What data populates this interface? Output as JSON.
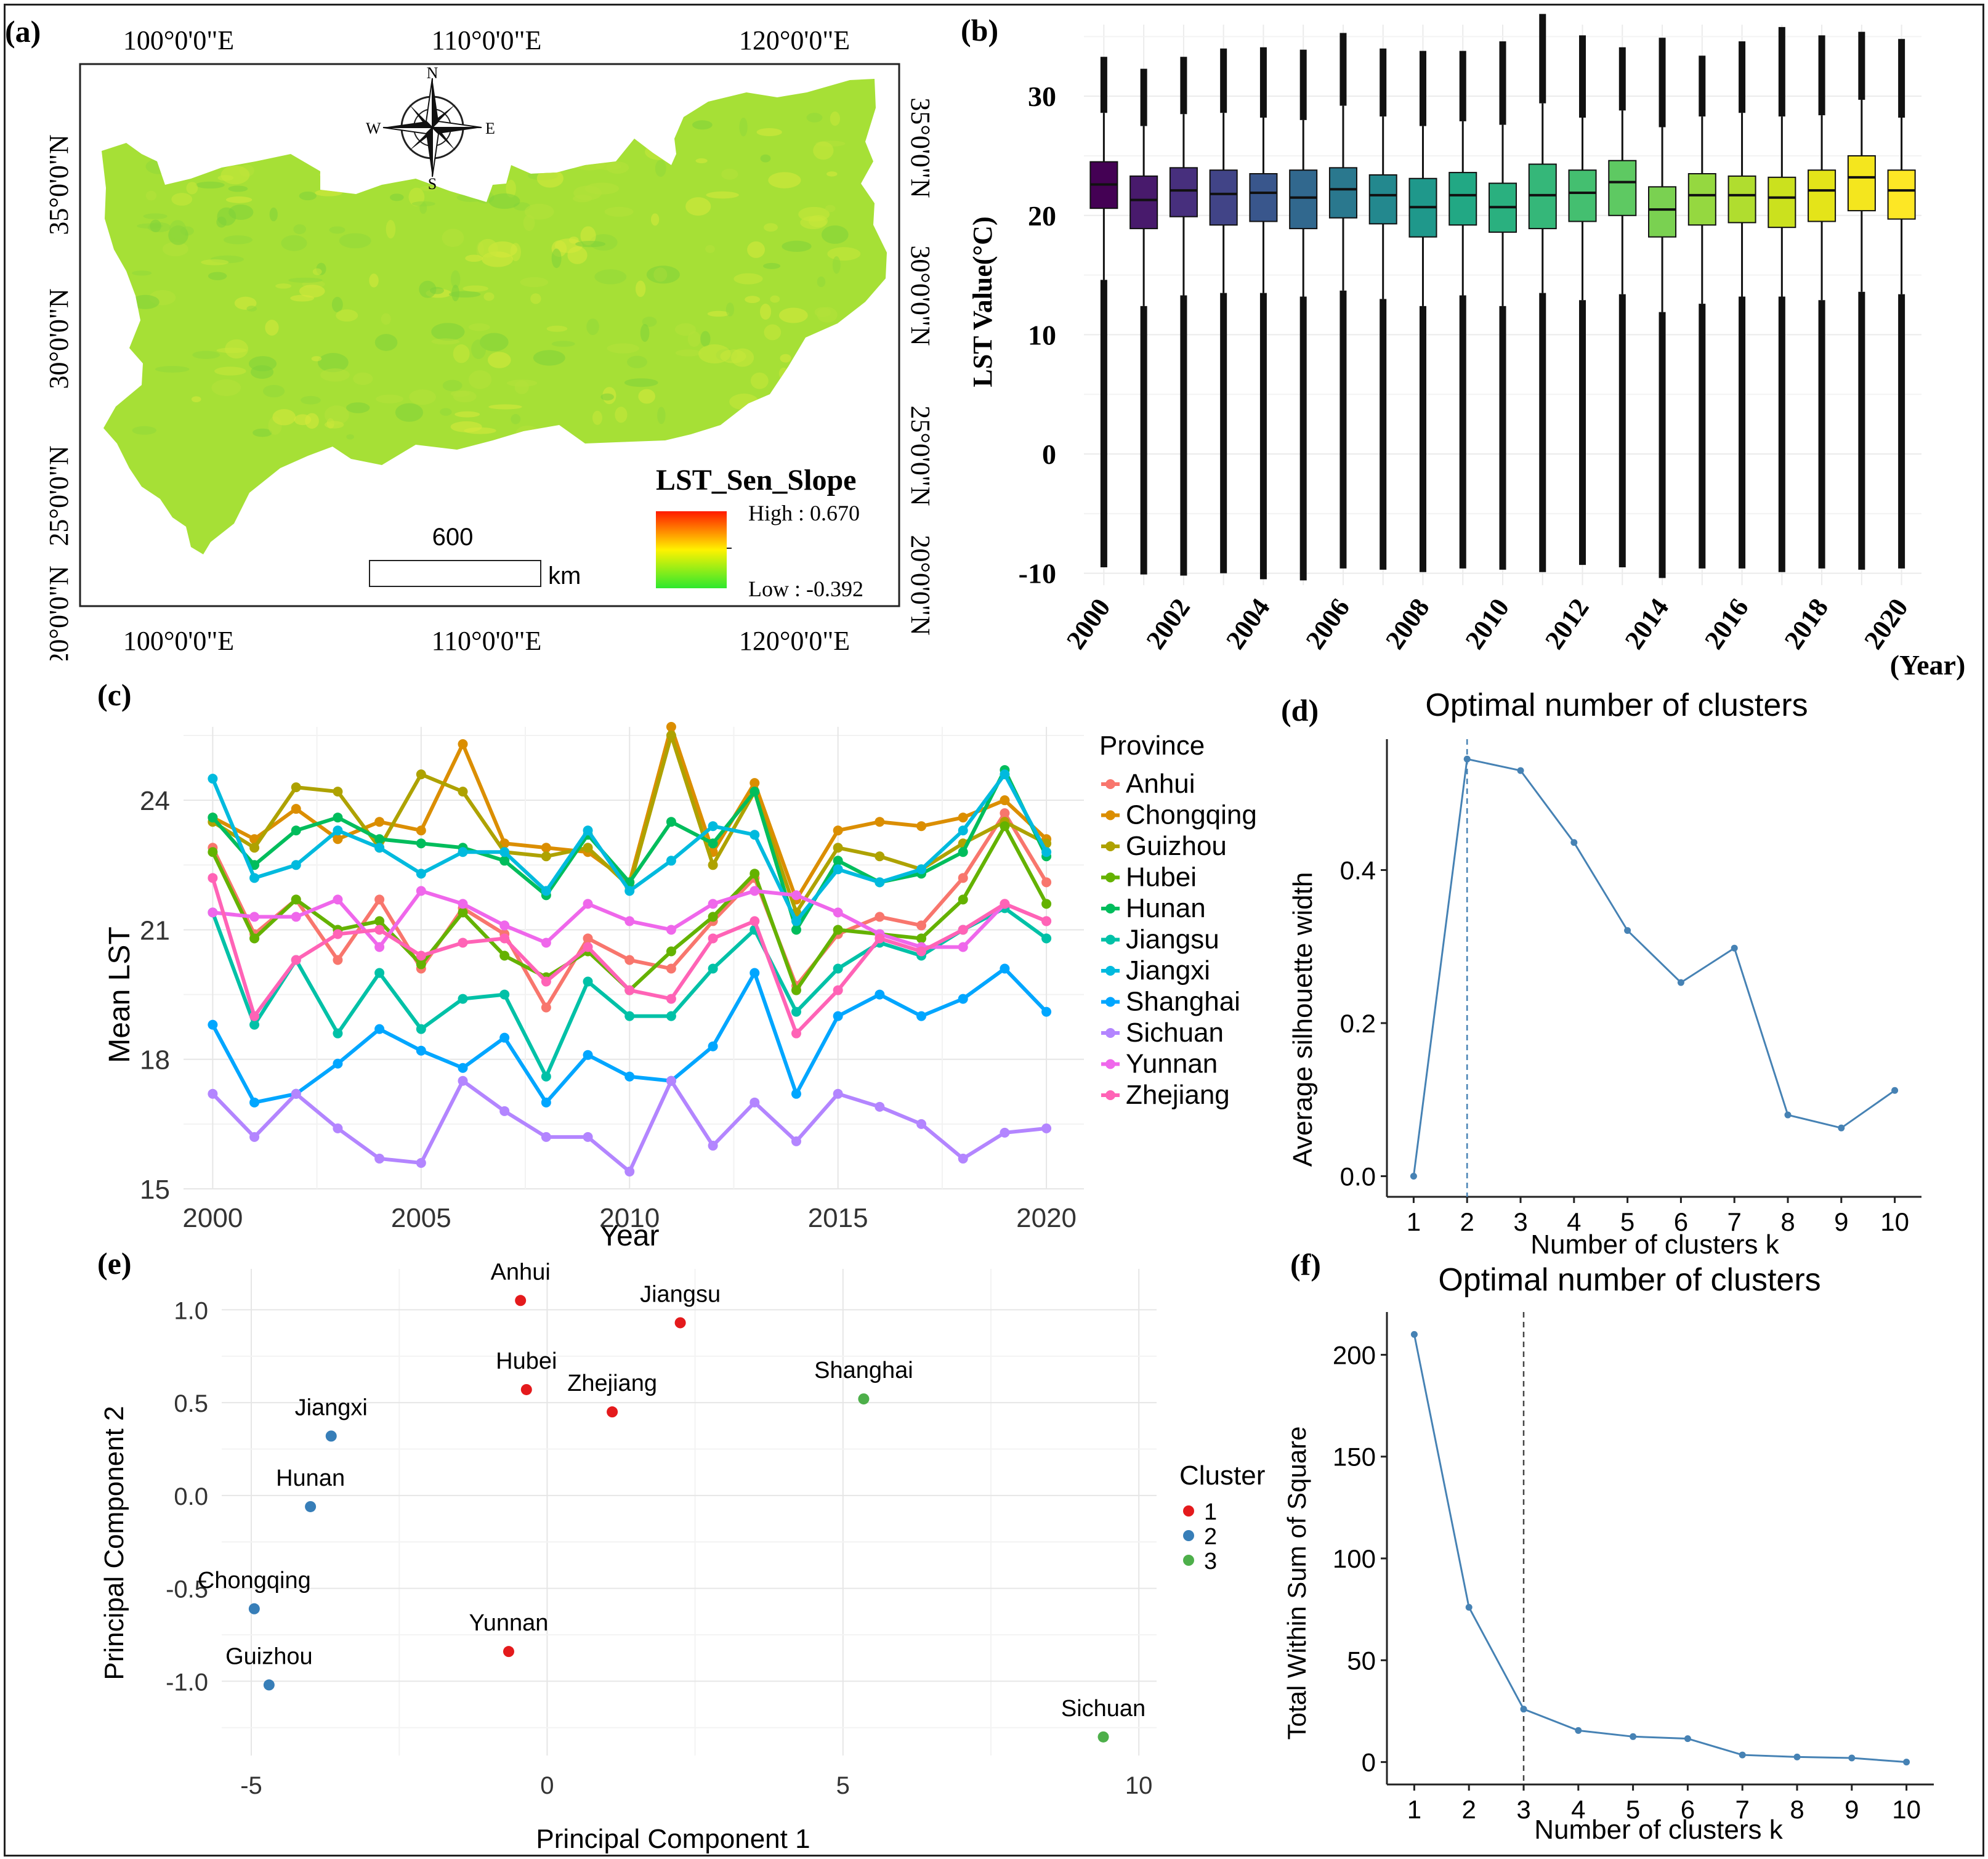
{
  "figure": {
    "panel_labels": {
      "a": "(a)",
      "b": "(b)",
      "c": "(c)",
      "d": "(d)",
      "e": "(e)",
      "f": "(f)"
    }
  },
  "map": {
    "top_lon_labels": [
      "100°0'0\"E",
      "110°0'0\"E",
      "120°0'0\"E"
    ],
    "bottom_lon_labels": [
      "100°0'0\"E",
      "110°0'0\"E",
      "120°0'0\"E"
    ],
    "lat_labels": [
      "35°0'0\"N",
      "30°0'0\"N",
      "25°0'0\"N",
      "20°0'0\"N"
    ],
    "compass": {
      "n": "N",
      "s": "S",
      "e": "E",
      "w": "W"
    },
    "legend_title": "LST_Sen_Slope",
    "legend_high": "High : 0.670",
    "legend_low": "Low : -0.392",
    "scale_value": "600",
    "scale_unit": "km",
    "colors": {
      "high": "#ff1a00",
      "mid": "#fff200",
      "low": "#2ee82e",
      "region": "#a6e036"
    }
  },
  "chart_data": [
    {
      "id": "b",
      "type": "box",
      "title": "",
      "xlabel": "(Year)",
      "ylabel": "LST Value(°C)",
      "ylim": [
        -11,
        36
      ],
      "yticks": [
        30,
        20,
        10,
        0,
        -10
      ],
      "x_tick_labels": [
        "2000",
        "2002",
        "2004",
        "2006",
        "2008",
        "2010",
        "2012",
        "2014",
        "2016",
        "2018",
        "2020"
      ],
      "categories": [
        "2000",
        "2001",
        "2002",
        "2003",
        "2004",
        "2005",
        "2006",
        "2007",
        "2008",
        "2009",
        "2010",
        "2011",
        "2012",
        "2013",
        "2014",
        "2015",
        "2016",
        "2017",
        "2018",
        "2019",
        "2020"
      ],
      "q1": [
        20.6,
        18.9,
        19.9,
        19.2,
        19.5,
        18.9,
        19.8,
        19.3,
        18.2,
        19.2,
        18.6,
        18.9,
        19.5,
        20.0,
        18.2,
        19.2,
        19.4,
        19.0,
        19.5,
        20.4,
        19.7
      ],
      "median": [
        22.6,
        21.3,
        22.1,
        21.8,
        21.9,
        21.5,
        22.2,
        21.7,
        20.7,
        21.7,
        20.7,
        21.7,
        21.9,
        22.8,
        20.5,
        21.7,
        21.7,
        21.5,
        22.1,
        23.2,
        22.1
      ],
      "q3": [
        24.5,
        23.3,
        24.0,
        23.8,
        23.5,
        23.8,
        24.0,
        23.4,
        23.1,
        23.6,
        22.7,
        24.3,
        23.8,
        24.6,
        22.4,
        23.5,
        23.3,
        23.2,
        23.8,
        25.0,
        23.8
      ],
      "whisker_high": [
        28.6,
        27.5,
        28.5,
        28.6,
        28.2,
        28.0,
        29.2,
        28.3,
        27.5,
        27.9,
        27.6,
        29.4,
        28.2,
        28.8,
        27.4,
        28.3,
        28.6,
        28.3,
        28.4,
        29.7,
        28.2
      ],
      "whisker_low": [
        14.6,
        12.4,
        13.3,
        13.5,
        13.5,
        13.2,
        13.7,
        13.0,
        12.4,
        13.3,
        12.4,
        13.5,
        12.9,
        13.4,
        11.9,
        12.6,
        13.2,
        13.2,
        12.9,
        13.6,
        13.4
      ],
      "outlier_high": [
        33.3,
        32.3,
        33.3,
        34.0,
        34.1,
        33.9,
        35.3,
        34.0,
        33.8,
        33.8,
        34.6,
        36.9,
        35.1,
        34.1,
        34.9,
        33.4,
        34.6,
        35.8,
        35.1,
        35.4,
        34.8
      ],
      "outlier_low": [
        -9.5,
        -10.1,
        -10.2,
        -10.0,
        -10.5,
        -10.6,
        -9.6,
        -9.7,
        -9.9,
        -9.6,
        -9.7,
        -9.9,
        -9.3,
        -9.5,
        -10.4,
        -9.6,
        -9.6,
        -9.9,
        -9.6,
        -9.7,
        -9.6
      ],
      "colors": [
        "#440154",
        "#481a6c",
        "#472f7d",
        "#414487",
        "#39568c",
        "#31688e",
        "#2a788e",
        "#23888e",
        "#1f988b",
        "#22a884",
        "#2ab07f",
        "#35b779",
        "#44bf70",
        "#5ec962",
        "#7ad151",
        "#95d840",
        "#b0dd2f",
        "#cbe11e",
        "#e4e419",
        "#f4e61e",
        "#fde725"
      ]
    },
    {
      "id": "c",
      "type": "line",
      "title": "",
      "xlabel": "Year",
      "ylabel": "Mean LST",
      "xlim": [
        1999.3,
        2020.9
      ],
      "ylim": [
        15.0,
        25.7
      ],
      "xticks": [
        2000,
        2005,
        2010,
        2015,
        2020
      ],
      "yticks": [
        15,
        18,
        21,
        24
      ],
      "legend_title": "Province",
      "x": [
        2000,
        2001,
        2002,
        2003,
        2004,
        2005,
        2006,
        2007,
        2008,
        2009,
        2010,
        2011,
        2012,
        2013,
        2014,
        2015,
        2016,
        2017,
        2018,
        2019,
        2020
      ],
      "series": [
        {
          "name": "Anhui",
          "color": "#F8766D",
          "values": [
            22.9,
            20.9,
            21.7,
            20.3,
            21.7,
            20.1,
            21.5,
            20.9,
            19.2,
            20.8,
            20.3,
            20.1,
            21.2,
            22.2,
            19.7,
            20.9,
            21.3,
            21.1,
            22.2,
            23.7,
            22.1
          ]
        },
        {
          "name": "Chongqing",
          "color": "#DB8E00",
          "values": [
            23.6,
            23.1,
            23.8,
            23.1,
            23.5,
            23.3,
            25.3,
            23.0,
            22.9,
            22.8,
            22.1,
            25.7,
            22.8,
            24.4,
            21.7,
            23.3,
            23.5,
            23.4,
            23.6,
            24.0,
            23.1
          ]
        },
        {
          "name": "Guizhou",
          "color": "#AEA200",
          "values": [
            23.5,
            22.9,
            24.3,
            24.2,
            22.9,
            24.6,
            24.2,
            22.8,
            22.7,
            22.9,
            22.0,
            25.5,
            22.5,
            24.2,
            21.4,
            22.9,
            22.7,
            22.4,
            23.0,
            23.5,
            23.0
          ]
        },
        {
          "name": "Hubei",
          "color": "#64B200",
          "values": [
            22.8,
            20.8,
            21.7,
            21.0,
            21.2,
            20.2,
            21.4,
            20.4,
            19.9,
            20.5,
            19.6,
            20.5,
            21.3,
            22.3,
            19.6,
            21.0,
            20.9,
            20.8,
            21.7,
            23.4,
            21.6
          ]
        },
        {
          "name": "Hunan",
          "color": "#00BD5C",
          "values": [
            23.6,
            22.5,
            23.3,
            23.6,
            23.1,
            23.0,
            22.9,
            22.6,
            21.8,
            23.2,
            22.1,
            23.5,
            23.0,
            24.2,
            21.0,
            22.6,
            22.1,
            22.3,
            22.8,
            24.7,
            22.7
          ]
        },
        {
          "name": "Jiangsu",
          "color": "#00C1A7",
          "values": [
            21.4,
            18.8,
            20.3,
            18.6,
            20.0,
            18.7,
            19.4,
            19.5,
            17.6,
            19.8,
            19.0,
            19.0,
            20.1,
            21.0,
            19.1,
            20.1,
            20.7,
            20.4,
            21.0,
            21.5,
            20.8
          ]
        },
        {
          "name": "Jiangxi",
          "color": "#00BADE",
          "values": [
            24.5,
            22.2,
            22.5,
            23.3,
            22.9,
            22.3,
            22.8,
            22.8,
            21.9,
            23.3,
            21.9,
            22.6,
            23.4,
            23.2,
            21.2,
            22.4,
            22.1,
            22.4,
            23.3,
            24.6,
            22.8
          ]
        },
        {
          "name": "Shanghai",
          "color": "#00A6FF",
          "values": [
            18.8,
            17.0,
            17.2,
            17.9,
            18.7,
            18.2,
            17.8,
            18.5,
            17.0,
            18.1,
            17.6,
            17.5,
            18.3,
            20.0,
            17.2,
            19.0,
            19.5,
            19.0,
            19.4,
            20.1,
            19.1
          ]
        },
        {
          "name": "Sichuan",
          "color": "#B385FF",
          "values": [
            17.2,
            16.2,
            17.2,
            16.4,
            15.7,
            15.6,
            17.5,
            16.8,
            16.2,
            16.2,
            15.4,
            17.5,
            16.0,
            17.0,
            16.1,
            17.2,
            16.9,
            16.5,
            15.7,
            16.3,
            16.4
          ]
        },
        {
          "name": "Yunnan",
          "color": "#EF67EB",
          "values": [
            21.4,
            21.3,
            21.3,
            21.7,
            20.6,
            21.9,
            21.6,
            21.1,
            20.7,
            21.6,
            21.2,
            21.0,
            21.6,
            21.9,
            21.8,
            21.4,
            20.9,
            20.6,
            20.6,
            21.6,
            21.2
          ]
        },
        {
          "name": "Zhejiang",
          "color": "#FF63B6",
          "values": [
            22.2,
            19.0,
            20.3,
            20.9,
            21.0,
            20.4,
            20.7,
            20.8,
            19.8,
            20.6,
            19.6,
            19.4,
            20.8,
            21.2,
            18.6,
            19.6,
            20.8,
            20.5,
            21.0,
            21.6,
            21.2
          ]
        }
      ]
    },
    {
      "id": "d",
      "type": "line",
      "title": "Optimal number of clusters",
      "xlabel": "Number of clusters k",
      "ylabel": "Average silhouette width",
      "xlim": [
        0.5,
        10.5
      ],
      "ylim": [
        -0.027,
        0.571
      ],
      "xticks": [
        1,
        2,
        3,
        4,
        5,
        6,
        7,
        8,
        9,
        10
      ],
      "yticks": [
        0.0,
        0.2,
        0.4
      ],
      "x": [
        1,
        2,
        3,
        4,
        5,
        6,
        7,
        8,
        9,
        10
      ],
      "values": [
        0.0,
        0.545,
        0.53,
        0.436,
        0.321,
        0.253,
        0.298,
        0.08,
        0.063,
        0.112
      ],
      "optimal_k": 2,
      "color": "#4682B4"
    },
    {
      "id": "e",
      "type": "scatter",
      "title": "",
      "xlabel": "Principal Component 1",
      "ylabel": "Principal Component 2",
      "xlim": [
        -5.5,
        10.3
      ],
      "ylim": [
        -1.4,
        1.22
      ],
      "xticks": [
        -5,
        0,
        5,
        10
      ],
      "yticks": [
        1.0,
        0.5,
        0.0,
        -0.5,
        -1.0
      ],
      "legend_title": "Cluster",
      "clusters": [
        {
          "name": "1",
          "color": "#E41A1C"
        },
        {
          "name": "2",
          "color": "#377EB8"
        },
        {
          "name": "3",
          "color": "#4DAF4A"
        }
      ],
      "points": [
        {
          "label": "Anhui",
          "x": -0.45,
          "y": 1.05,
          "cluster": "1"
        },
        {
          "label": "Jiangsu",
          "x": 2.25,
          "y": 0.93,
          "cluster": "1"
        },
        {
          "label": "Hubei",
          "x": -0.35,
          "y": 0.57,
          "cluster": "1"
        },
        {
          "label": "Zhejiang",
          "x": 1.1,
          "y": 0.45,
          "cluster": "1"
        },
        {
          "label": "Yunnan",
          "x": -0.65,
          "y": -0.84,
          "cluster": "1"
        },
        {
          "label": "Jiangxi",
          "x": -3.65,
          "y": 0.32,
          "cluster": "2"
        },
        {
          "label": "Hunan",
          "x": -4.0,
          "y": -0.06,
          "cluster": "2"
        },
        {
          "label": "Chongqing",
          "x": -4.95,
          "y": -0.61,
          "cluster": "2"
        },
        {
          "label": "Guizhou",
          "x": -4.7,
          "y": -1.02,
          "cluster": "2"
        },
        {
          "label": "Shanghai",
          "x": 5.35,
          "y": 0.52,
          "cluster": "3"
        },
        {
          "label": "Sichuan",
          "x": 9.4,
          "y": -1.3,
          "cluster": "3"
        }
      ]
    },
    {
      "id": "f",
      "type": "line",
      "title": "Optimal number of clusters",
      "xlabel": "Number of clusters k",
      "ylabel": "Total Within Sum of Square",
      "xlim": [
        0.5,
        10.5
      ],
      "ylim": [
        -11,
        221
      ],
      "xticks": [
        1,
        2,
        3,
        4,
        5,
        6,
        7,
        8,
        9,
        10
      ],
      "yticks": [
        0,
        50,
        100,
        150,
        200
      ],
      "x": [
        1,
        2,
        3,
        4,
        5,
        6,
        7,
        8,
        9,
        10
      ],
      "values": [
        210,
        76,
        26,
        15.5,
        12.5,
        11.5,
        3.5,
        2.5,
        2.0,
        0.0
      ],
      "optimal_k": 3,
      "color": "#4682B4"
    }
  ]
}
